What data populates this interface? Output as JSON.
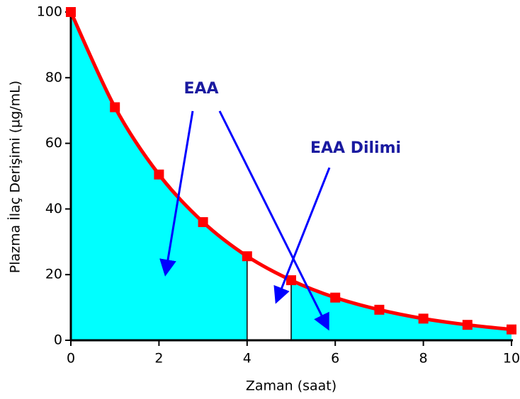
{
  "chart_data": {
    "type": "line",
    "x_label": "Zaman (saat)",
    "y_label": "Plazma İlaç Derişimi (µg/mL)",
    "x": [
      0,
      1,
      2,
      3,
      4,
      5,
      6,
      7,
      8,
      9,
      10
    ],
    "series": [
      {
        "color": "#ff0000",
        "values": [
          100,
          71,
          50.5,
          36,
          25.6,
          18.3,
          13,
          9.3,
          6.6,
          4.7,
          3.3
        ]
      }
    ],
    "fill_color": "#00ffff",
    "slice": [
      4,
      5
    ],
    "xlim": [
      0,
      10
    ],
    "xticks": [
      0,
      2,
      4,
      6,
      8,
      10
    ],
    "ylim": [
      0,
      100
    ],
    "yticks": [
      0,
      20,
      40,
      60,
      80,
      100
    ],
    "annotations": [
      "EAA",
      "EAA Dilimi"
    ]
  }
}
